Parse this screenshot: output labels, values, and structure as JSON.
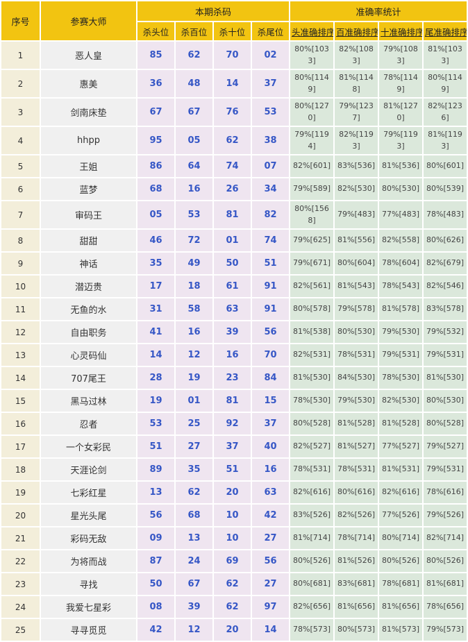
{
  "colors": {
    "header_bg": "#F2C411",
    "serial_bg": "#F3EEDA",
    "name_bg": "#F0F0F0",
    "kill_bg": "#EFE5F0",
    "accuracy_bg": "#DBE8DB",
    "kill_number_color": "#3657C6"
  },
  "table": {
    "header": {
      "serial": "序号",
      "master": "参赛大师",
      "kill_group": "本期杀码",
      "accuracy_group": "准确率统计",
      "kill_columns": [
        "杀头位",
        "杀百位",
        "杀十位",
        "杀尾位"
      ],
      "accuracy_columns": [
        "头准确排序",
        "百准确排序",
        "十准确排序",
        "尾准确排序"
      ]
    },
    "rows": [
      {
        "no": "1",
        "name": "恶人皇",
        "kills": [
          "85",
          "62",
          "70",
          "02"
        ],
        "accuracy": [
          "80%[1033]",
          "82%[1083]",
          "79%[1083]",
          "81%[1033]"
        ]
      },
      {
        "no": "2",
        "name": "惠美",
        "kills": [
          "36",
          "48",
          "14",
          "37"
        ],
        "accuracy": [
          "80%[1149]",
          "81%[1148]",
          "78%[1149]",
          "80%[1149]"
        ]
      },
      {
        "no": "3",
        "name": "剑南床垫",
        "kills": [
          "67",
          "67",
          "76",
          "53"
        ],
        "accuracy": [
          "80%[1270]",
          "79%[1237]",
          "81%[1270]",
          "82%[1236]"
        ]
      },
      {
        "no": "4",
        "name": "hhpp",
        "kills": [
          "95",
          "05",
          "62",
          "38"
        ],
        "accuracy": [
          "79%[1194]",
          "82%[1193]",
          "79%[1193]",
          "81%[1193]"
        ]
      },
      {
        "no": "5",
        "name": "王姐",
        "kills": [
          "86",
          "64",
          "74",
          "07"
        ],
        "accuracy": [
          "82%[601]",
          "83%[536]",
          "81%[536]",
          "80%[601]"
        ]
      },
      {
        "no": "6",
        "name": "蓝梦",
        "kills": [
          "68",
          "16",
          "26",
          "34"
        ],
        "accuracy": [
          "79%[589]",
          "82%[530]",
          "80%[530]",
          "80%[539]"
        ]
      },
      {
        "no": "7",
        "name": "审码王",
        "kills": [
          "05",
          "53",
          "81",
          "82"
        ],
        "accuracy": [
          "80%[1568]",
          "79%[483]",
          "77%[483]",
          "78%[483]"
        ]
      },
      {
        "no": "8",
        "name": "甜甜",
        "kills": [
          "46",
          "72",
          "01",
          "74"
        ],
        "accuracy": [
          "79%[625]",
          "81%[556]",
          "82%[558]",
          "80%[626]"
        ]
      },
      {
        "no": "9",
        "name": "神话",
        "kills": [
          "35",
          "49",
          "50",
          "51"
        ],
        "accuracy": [
          "79%[671]",
          "80%[604]",
          "78%[604]",
          "82%[679]"
        ]
      },
      {
        "no": "10",
        "name": "潜迈贵",
        "kills": [
          "17",
          "18",
          "61",
          "91"
        ],
        "accuracy": [
          "82%[561]",
          "81%[543]",
          "78%[543]",
          "82%[546]"
        ]
      },
      {
        "no": "11",
        "name": "无鱼的水",
        "kills": [
          "31",
          "58",
          "63",
          "91"
        ],
        "accuracy": [
          "80%[578]",
          "79%[578]",
          "81%[578]",
          "83%[578]"
        ]
      },
      {
        "no": "12",
        "name": "自由职务",
        "kills": [
          "41",
          "16",
          "39",
          "56"
        ],
        "accuracy": [
          "81%[538]",
          "80%[530]",
          "79%[530]",
          "79%[532]"
        ]
      },
      {
        "no": "13",
        "name": "心灵码仙",
        "kills": [
          "14",
          "12",
          "16",
          "70"
        ],
        "accuracy": [
          "82%[531]",
          "78%[531]",
          "79%[531]",
          "79%[531]"
        ]
      },
      {
        "no": "14",
        "name": "707尾王",
        "kills": [
          "28",
          "19",
          "23",
          "84"
        ],
        "accuracy": [
          "81%[530]",
          "84%[530]",
          "78%[530]",
          "81%[530]"
        ]
      },
      {
        "no": "15",
        "name": "黑马过林",
        "kills": [
          "19",
          "01",
          "81",
          "15"
        ],
        "accuracy": [
          "78%[530]",
          "79%[530]",
          "82%[530]",
          "80%[530]"
        ]
      },
      {
        "no": "16",
        "name": "忍者",
        "kills": [
          "53",
          "25",
          "92",
          "37"
        ],
        "accuracy": [
          "80%[528]",
          "81%[528]",
          "81%[528]",
          "80%[528]"
        ]
      },
      {
        "no": "17",
        "name": "一个女彩民",
        "kills": [
          "51",
          "27",
          "37",
          "40"
        ],
        "accuracy": [
          "82%[527]",
          "81%[527]",
          "77%[527]",
          "79%[527]"
        ]
      },
      {
        "no": "18",
        "name": "天涯论剑",
        "kills": [
          "89",
          "35",
          "51",
          "16"
        ],
        "accuracy": [
          "78%[531]",
          "78%[531]",
          "81%[531]",
          "79%[531]"
        ]
      },
      {
        "no": "19",
        "name": "七彩红星",
        "kills": [
          "13",
          "62",
          "20",
          "63"
        ],
        "accuracy": [
          "82%[616]",
          "80%[616]",
          "82%[616]",
          "78%[616]"
        ]
      },
      {
        "no": "20",
        "name": "星光头尾",
        "kills": [
          "56",
          "68",
          "10",
          "42"
        ],
        "accuracy": [
          "83%[526]",
          "82%[526]",
          "77%[526]",
          "79%[526]"
        ]
      },
      {
        "no": "21",
        "name": "彩码无敌",
        "kills": [
          "09",
          "13",
          "10",
          "27"
        ],
        "accuracy": [
          "81%[714]",
          "78%[714]",
          "80%[714]",
          "82%[714]"
        ]
      },
      {
        "no": "22",
        "name": "为将而战",
        "kills": [
          "87",
          "24",
          "69",
          "56"
        ],
        "accuracy": [
          "80%[526]",
          "81%[526]",
          "80%[526]",
          "80%[526]"
        ]
      },
      {
        "no": "23",
        "name": "寻找",
        "kills": [
          "50",
          "67",
          "62",
          "27"
        ],
        "accuracy": [
          "80%[681]",
          "83%[681]",
          "78%[681]",
          "81%[681]"
        ]
      },
      {
        "no": "24",
        "name": "我爱七星彩",
        "kills": [
          "08",
          "39",
          "62",
          "97"
        ],
        "accuracy": [
          "82%[656]",
          "81%[656]",
          "81%[656]",
          "78%[656]"
        ]
      },
      {
        "no": "25",
        "name": "寻寻觅觅",
        "kills": [
          "42",
          "12",
          "20",
          "14"
        ],
        "accuracy": [
          "78%[573]",
          "80%[573]",
          "81%[573]",
          "79%[573]"
        ]
      }
    ]
  }
}
